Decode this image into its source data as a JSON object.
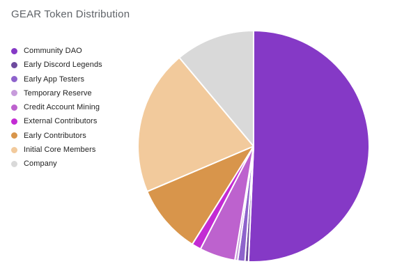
{
  "title": "GEAR Token Distribution",
  "chart_data": {
    "type": "pie",
    "title": "GEAR Token Distribution",
    "legend_position": "left",
    "background": "#ffffff",
    "title_color": "#5f6368",
    "label_color": "#212121",
    "direction": "clockwise",
    "start_angle_deg": 0,
    "labels": [
      "Community DAO",
      "Early Discord Legends",
      "Early App Testers",
      "Temporary Reserve",
      "Credit Account Mining",
      "External Contributors",
      "Early Contributors",
      "Initial Core Members",
      "Company"
    ],
    "values": [
      50.7,
      0.5,
      1.0,
      0.4,
      5.0,
      1.3,
      9.7,
      20.3,
      11.1
    ],
    "colors": [
      "#8539C6",
      "#6E4B9E",
      "#8E63CC",
      "#C79BDB",
      "#BD62CE",
      "#C32BD4",
      "#D8954B",
      "#F2CA9C",
      "#D9D9D9"
    ]
  }
}
